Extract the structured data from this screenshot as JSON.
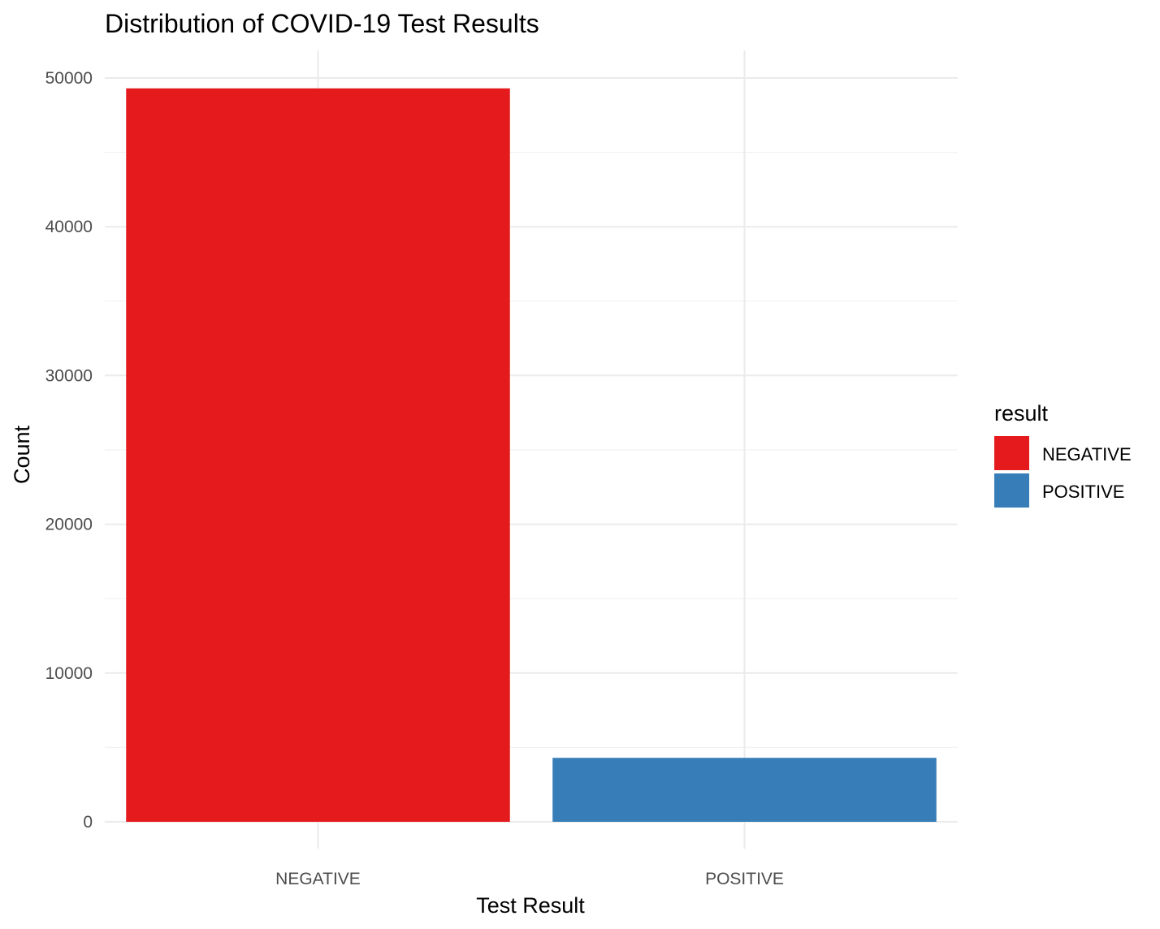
{
  "chart_data": {
    "type": "bar",
    "title": "Distribution of COVID-19 Test Results",
    "xlabel": "Test Result",
    "ylabel": "Count",
    "categories": [
      "NEGATIVE",
      "POSITIVE"
    ],
    "values": [
      49300,
      4300
    ],
    "colors": [
      "#e41a1c",
      "#377eb8"
    ],
    "ylim": [
      0,
      52000
    ],
    "yticks": [
      0,
      10000,
      20000,
      30000,
      40000,
      50000
    ],
    "ytick_labels": [
      "0",
      "10000",
      "20000",
      "30000",
      "40000",
      "50000"
    ],
    "grid": true,
    "legend": {
      "title": "result",
      "position": "right",
      "entries": [
        "NEGATIVE",
        "POSITIVE"
      ]
    }
  }
}
